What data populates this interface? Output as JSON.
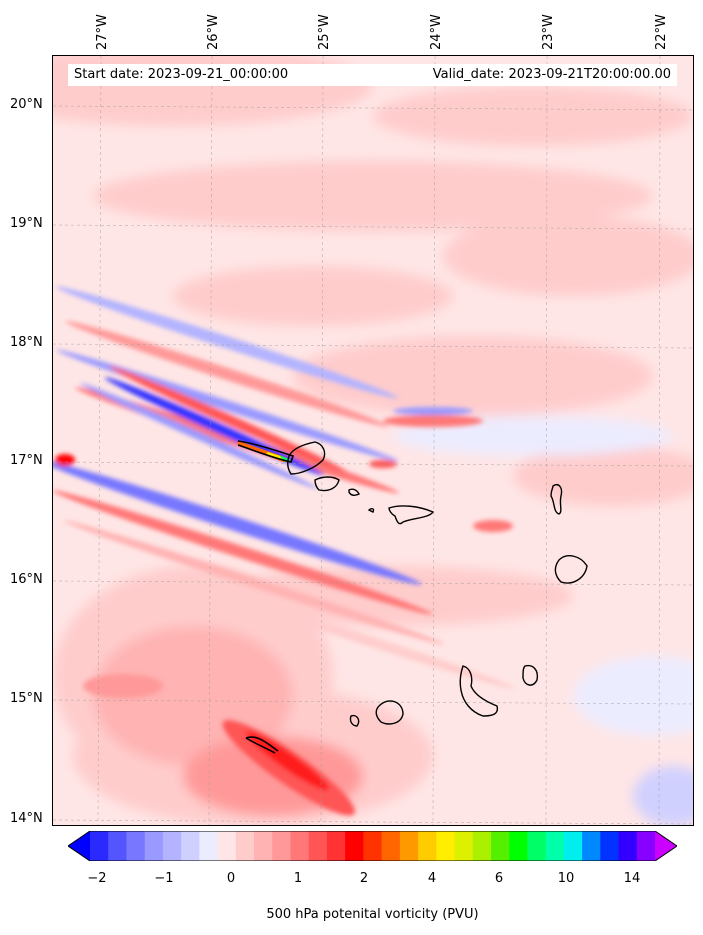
{
  "map": {
    "start_label": "Start date: 2023-09-21_00:00:00",
    "valid_label": "Valid_date: 2023-09-21T20:00:00.00",
    "lon_labels": [
      "27°W",
      "26°W",
      "25°W",
      "24°W",
      "23°W",
      "22°W"
    ],
    "lat_labels": [
      "20°N",
      "19°N",
      "18°N",
      "17°N",
      "16°N",
      "15°N",
      "14°N"
    ],
    "gridlines": true,
    "coastlines": true
  },
  "colorbar": {
    "title": "500 hPa potenital vorticity (PVU)",
    "tick_labels": [
      "−2",
      "−1",
      "0",
      "1",
      "2",
      "4",
      "6",
      "10",
      "14"
    ],
    "colors": [
      "#0000ff",
      "#2a2aff",
      "#5555ff",
      "#7777ff",
      "#9999ff",
      "#b3b3ff",
      "#d0d0ff",
      "#ececff",
      "#ffe6e6",
      "#ffcccc",
      "#ffb3b3",
      "#ff9999",
      "#ff7777",
      "#ff5555",
      "#ff3333",
      "#ff0000",
      "#ff3300",
      "#ff6600",
      "#ff9900",
      "#ffcc00",
      "#ffee00",
      "#ddf000",
      "#aaf000",
      "#55f000",
      "#00ff00",
      "#00ff66",
      "#00ffaa",
      "#00eeee",
      "#0088ff",
      "#0033ff",
      "#3300ff",
      "#8800ff",
      "#cc00ff"
    ]
  }
}
